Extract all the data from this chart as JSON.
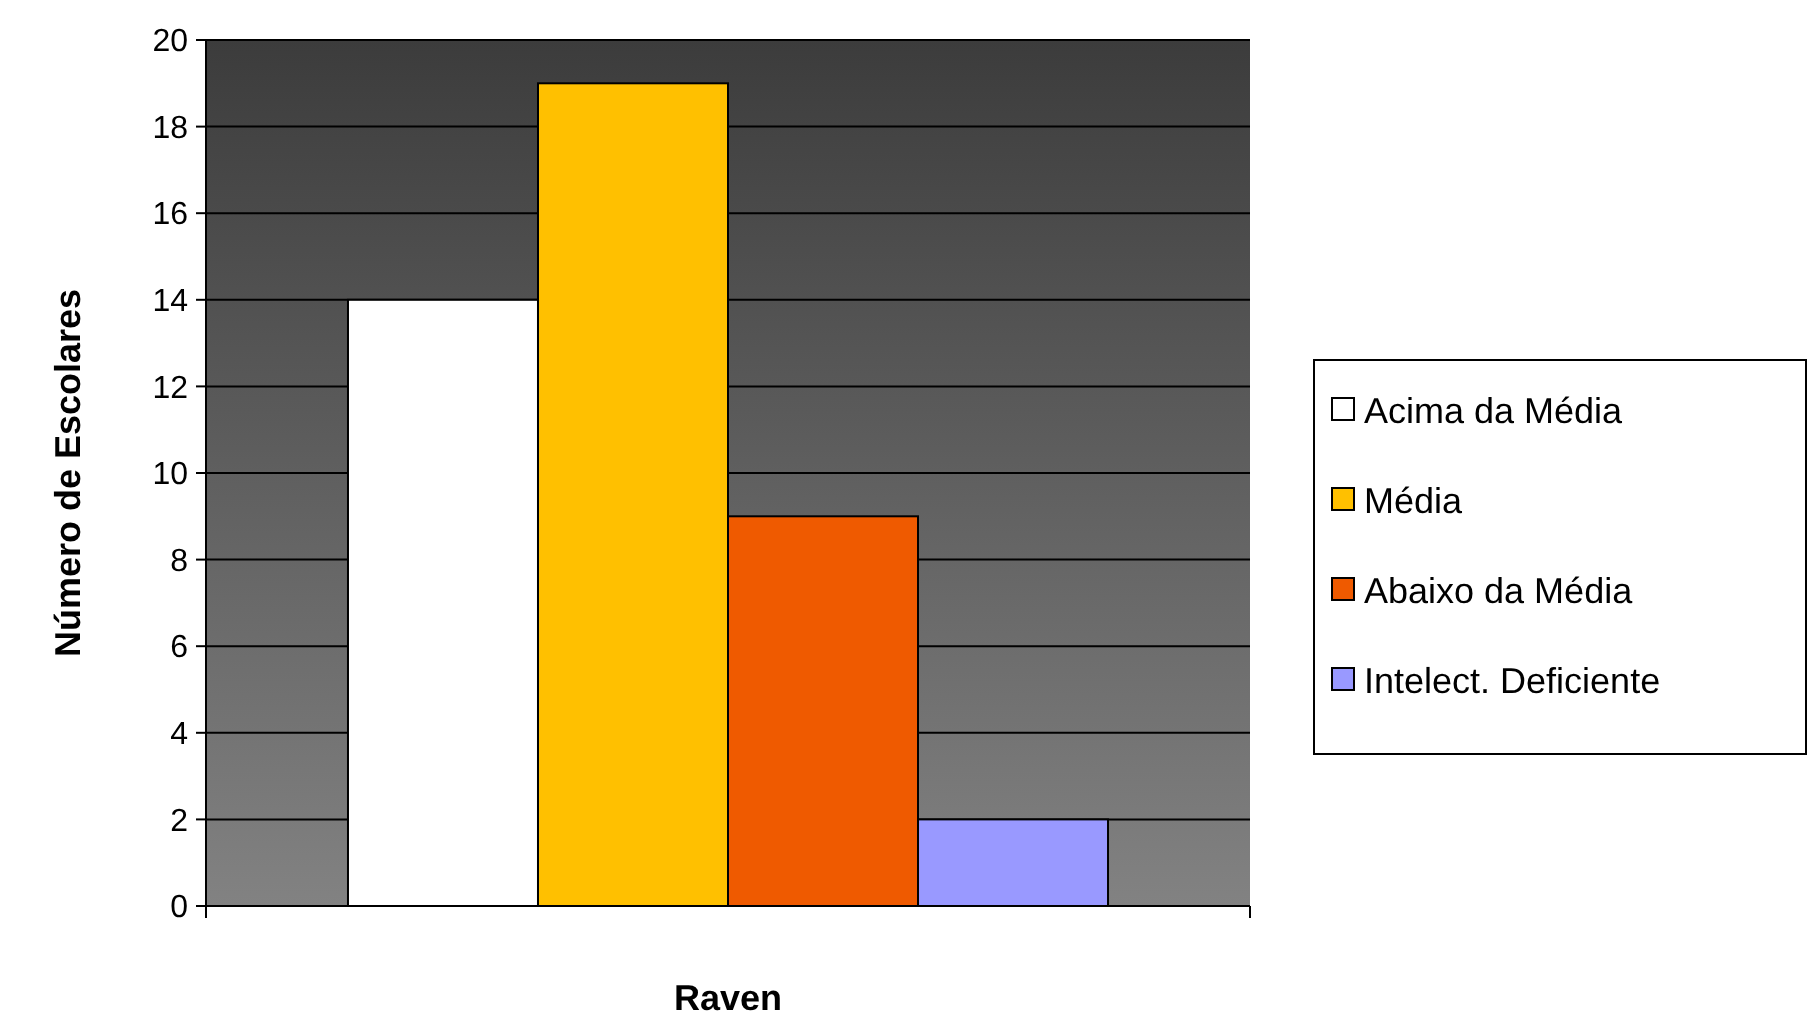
{
  "chart_data": {
    "type": "bar",
    "xlabel": "Raven",
    "ylabel": "Número de Escolares",
    "categories": [
      null
    ],
    "series": [
      {
        "name": "Acima da Média",
        "color": "#ffffff",
        "values": [
          14
        ]
      },
      {
        "name": "Média",
        "color": "#ffc000",
        "values": [
          19
        ]
      },
      {
        "name": "Abaixo da Média",
        "color": "#ef5a00",
        "values": [
          9
        ]
      },
      {
        "name": "Intelect. Deficiente",
        "color": "#9999ff",
        "values": [
          2
        ]
      }
    ],
    "ylim": [
      0,
      20
    ],
    "yticks": [
      0,
      2,
      4,
      6,
      8,
      10,
      12,
      14,
      16,
      18,
      20
    ],
    "grid": "y",
    "legend": "right"
  }
}
